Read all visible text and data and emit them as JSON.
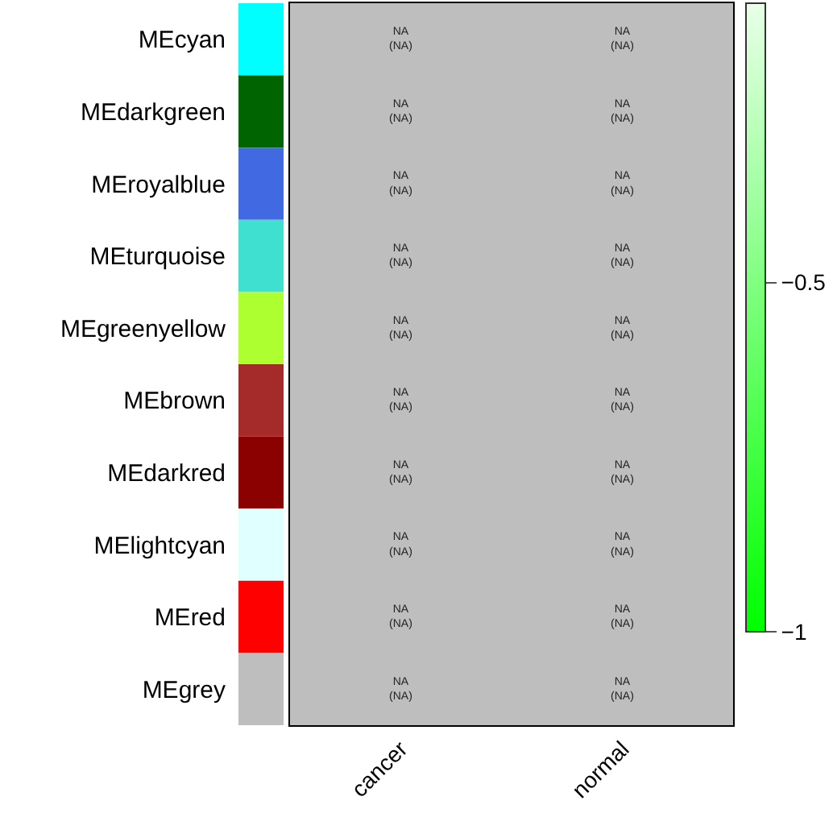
{
  "chart_data": {
    "type": "heatmap",
    "categories": [
      "cancer",
      "normal"
    ],
    "y_categories": [
      "MEcyan",
      "MEdarkgreen",
      "MEroyalblue",
      "MEturquoise",
      "MEgreenyellow",
      "MEbrown",
      "MEdarkred",
      "MElightcyan",
      "MEred",
      "MEgrey"
    ],
    "colors": [
      "#00ffff",
      "#006400",
      "#4169e1",
      "#40e0d0",
      "#adff2f",
      "#a52a2a",
      "#8b0000",
      "#e0ffff",
      "#ff0000",
      "#bebebe"
    ],
    "cells": [
      [
        null,
        null
      ],
      [
        null,
        null
      ],
      [
        null,
        null
      ],
      [
        null,
        null
      ],
      [
        null,
        null
      ],
      [
        null,
        null
      ],
      [
        null,
        null
      ],
      [
        null,
        null
      ],
      [
        null,
        null
      ],
      [
        null,
        null
      ]
    ],
    "cell_labels": [
      [
        "NA\n(NA)",
        "NA\n(NA)"
      ],
      [
        "NA\n(NA)",
        "NA\n(NA)"
      ],
      [
        "NA\n(NA)",
        "NA\n(NA)"
      ],
      [
        "NA\n(NA)",
        "NA\n(NA)"
      ],
      [
        "NA\n(NA)",
        "NA\n(NA)"
      ],
      [
        "NA\n(NA)",
        "NA\n(NA)"
      ],
      [
        "NA\n(NA)",
        "NA\n(NA)"
      ],
      [
        "NA\n(NA)",
        "NA\n(NA)"
      ],
      [
        "NA\n(NA)",
        "NA\n(NA)"
      ],
      [
        "NA\n(NA)",
        "NA\n(NA)"
      ]
    ],
    "clim": [
      -1,
      -0.1
    ],
    "cticks": [
      -1,
      -0.5
    ]
  }
}
